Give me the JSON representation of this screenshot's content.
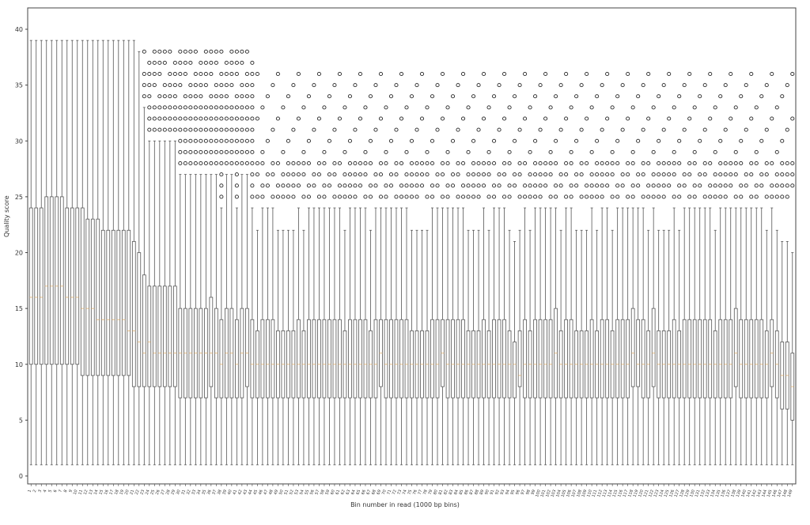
{
  "chart_data": {
    "type": "box",
    "title": "",
    "xlabel": "Bin number in read (1000 bp bins)",
    "ylabel": "Quality score",
    "ylim": [
      -1,
      41
    ],
    "yticks": [
      0,
      5,
      10,
      15,
      20,
      25,
      30,
      35,
      40
    ],
    "n_bins": 149,
    "colors": {
      "box": "#555555",
      "median": "#e0b070",
      "outlier": "#222222",
      "axis": "#444444"
    },
    "q3": [
      24,
      24,
      24,
      25,
      25,
      25,
      25,
      24,
      24,
      24,
      24,
      23,
      23,
      23,
      22,
      22,
      22,
      22,
      22,
      22,
      21,
      20,
      18,
      17,
      17,
      17,
      17,
      17,
      17,
      15,
      15,
      15,
      15,
      15,
      15,
      16,
      15,
      14,
      15,
      15,
      14,
      15,
      15,
      14,
      13,
      14,
      14,
      14,
      13,
      13,
      13,
      13,
      14,
      13,
      14,
      14,
      14,
      14,
      14,
      14,
      14,
      13,
      14,
      14,
      14,
      14,
      13,
      14,
      14,
      14,
      14,
      14,
      14,
      14,
      13,
      13,
      13,
      13,
      14,
      14,
      14,
      14,
      14,
      14,
      14,
      13,
      13,
      13,
      14,
      13,
      14,
      14,
      14,
      13,
      12,
      13,
      14,
      13,
      14,
      14,
      14,
      14,
      15,
      13,
      14,
      14,
      13,
      13,
      13,
      14,
      13,
      14,
      14,
      13,
      14,
      14,
      14,
      15,
      14,
      14,
      13,
      15,
      13,
      13,
      13,
      14,
      13,
      14,
      14,
      14,
      14,
      14,
      14,
      13,
      14,
      14,
      14,
      15,
      14,
      14,
      14,
      14,
      14,
      13,
      14,
      13,
      12,
      12,
      11
    ],
    "median": [
      16,
      16,
      16,
      17,
      17,
      17,
      17,
      16,
      16,
      16,
      15,
      15,
      15,
      14,
      14,
      14,
      14,
      14,
      14,
      13,
      13,
      12,
      11,
      12,
      11,
      11,
      11,
      11,
      11,
      11,
      11,
      11,
      11,
      11,
      11,
      11,
      11,
      10,
      11,
      11,
      10,
      11,
      11,
      10,
      10,
      10,
      10,
      10,
      10,
      10,
      10,
      10,
      10,
      10,
      10,
      10,
      10,
      10,
      10,
      10,
      10,
      10,
      10,
      10,
      10,
      10,
      10,
      10,
      11,
      10,
      10,
      10,
      10,
      10,
      10,
      10,
      10,
      10,
      10,
      10,
      11,
      10,
      10,
      10,
      10,
      10,
      10,
      10,
      10,
      10,
      10,
      10,
      10,
      10,
      10,
      9,
      10,
      10,
      10,
      10,
      10,
      10,
      11,
      10,
      10,
      10,
      10,
      10,
      10,
      10,
      10,
      10,
      10,
      10,
      10,
      10,
      10,
      11,
      10,
      10,
      10,
      11,
      10,
      10,
      10,
      10,
      10,
      10,
      10,
      10,
      10,
      10,
      10,
      10,
      10,
      10,
      10,
      11,
      10,
      10,
      10,
      10,
      10,
      10,
      11,
      10,
      9,
      9,
      8
    ],
    "q1": [
      10,
      10,
      10,
      10,
      10,
      10,
      10,
      10,
      10,
      10,
      9,
      9,
      9,
      9,
      9,
      9,
      9,
      9,
      9,
      9,
      8,
      8,
      8,
      8,
      8,
      8,
      8,
      8,
      8,
      7,
      7,
      7,
      7,
      7,
      7,
      8,
      7,
      7,
      7,
      7,
      7,
      7,
      8,
      7,
      7,
      7,
      7,
      7,
      7,
      7,
      7,
      7,
      7,
      7,
      7,
      7,
      7,
      7,
      7,
      7,
      7,
      7,
      7,
      7,
      7,
      7,
      7,
      7,
      8,
      7,
      7,
      7,
      7,
      7,
      7,
      7,
      7,
      7,
      7,
      7,
      8,
      7,
      7,
      7,
      7,
      7,
      7,
      7,
      7,
      7,
      7,
      7,
      7,
      7,
      7,
      8,
      7,
      7,
      7,
      7,
      7,
      7,
      7,
      7,
      7,
      7,
      7,
      7,
      7,
      7,
      7,
      7,
      7,
      7,
      7,
      7,
      7,
      8,
      8,
      7,
      7,
      8,
      7,
      7,
      7,
      7,
      7,
      7,
      7,
      7,
      7,
      7,
      7,
      7,
      7,
      7,
      7,
      8,
      7,
      7,
      7,
      7,
      7,
      7,
      8,
      7,
      6,
      6,
      5
    ],
    "whisker_low": 1,
    "whisker_high": [
      39,
      39,
      39,
      39,
      39,
      39,
      39,
      39,
      39,
      39,
      39,
      39,
      39,
      39,
      39,
      39,
      39,
      39,
      39,
      39,
      39,
      38,
      33,
      30,
      30,
      30,
      30,
      30,
      30,
      27,
      27,
      27,
      27,
      27,
      27,
      27,
      27,
      24,
      27,
      27,
      24,
      27,
      27,
      24,
      22,
      24,
      24,
      24,
      22,
      22,
      22,
      22,
      24,
      22,
      24,
      24,
      24,
      24,
      24,
      24,
      24,
      22,
      24,
      24,
      24,
      24,
      22,
      24,
      24,
      24,
      24,
      24,
      24,
      24,
      22,
      22,
      22,
      22,
      24,
      24,
      24,
      24,
      24,
      24,
      24,
      22,
      22,
      22,
      24,
      22,
      24,
      24,
      24,
      22,
      21,
      22,
      24,
      22,
      24,
      24,
      24,
      24,
      24,
      22,
      24,
      24,
      22,
      22,
      22,
      24,
      22,
      24,
      24,
      22,
      24,
      24,
      24,
      24,
      24,
      24,
      22,
      24,
      22,
      22,
      22,
      24,
      22,
      24,
      24,
      24,
      24,
      24,
      24,
      22,
      24,
      24,
      24,
      24,
      24,
      24,
      24,
      24,
      24,
      22,
      24,
      22,
      21,
      21,
      20
    ],
    "outlier_levels": [
      25,
      26,
      27,
      28,
      29,
      30,
      31,
      32,
      33,
      34,
      35,
      36,
      37,
      38,
      39
    ]
  }
}
